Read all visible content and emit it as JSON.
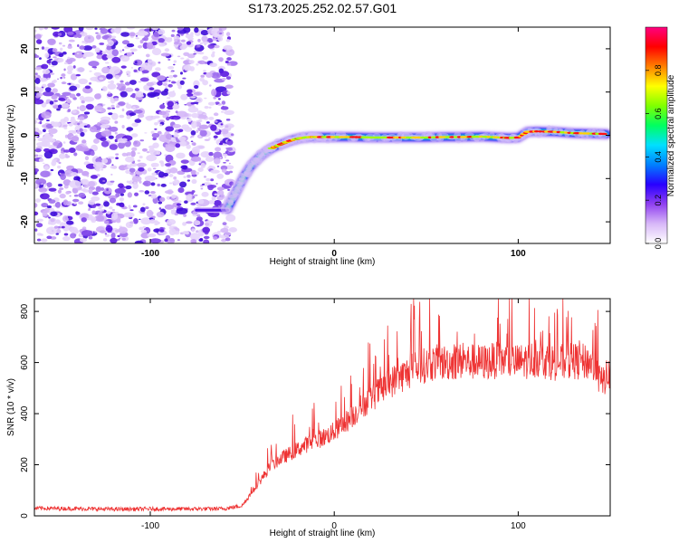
{
  "title": "S173.2025.252.02.57.G01",
  "chart_data": [
    {
      "type": "heatmap",
      "title": "S173.2025.252.02.57.G01",
      "xlabel": "Height of straight line (km)",
      "ylabel": "Frequency (Hz)",
      "xlim": [
        -163,
        150
      ],
      "ylim": [
        -25,
        25
      ],
      "xticks": [
        -100,
        0,
        100
      ],
      "yticks": [
        -20,
        -10,
        0,
        10,
        20
      ],
      "grid": false,
      "colorbar": {
        "label": "Normalized spectral amplitude",
        "range": [
          0,
          1
        ],
        "ticks": [
          "0.0",
          "0.2",
          "0.4",
          "0.6",
          "0.8"
        ],
        "colors": [
          "#ffffff",
          "#d8b8f8",
          "#9040f0",
          "#2800ff",
          "#0080ff",
          "#00e0ff",
          "#00ff60",
          "#80ff00",
          "#ffff00",
          "#ff8000",
          "#ff0000",
          "#ff0080"
        ]
      },
      "noise_region": {
        "x_range": [
          -163,
          -55
        ],
        "y_range": [
          -25,
          25
        ]
      },
      "ridge": {
        "x": [
          -58,
          -55,
          -52,
          -49,
          -46,
          -43,
          -40,
          -37,
          -34,
          -31,
          -28,
          -25,
          -22,
          -19,
          -16,
          -13,
          -10,
          -5,
          0,
          10,
          20,
          30,
          40,
          50,
          60,
          70,
          80,
          90,
          95,
          100,
          105,
          110,
          120,
          130,
          140,
          148
        ],
        "freq": [
          -17,
          -14.5,
          -12,
          -9.5,
          -7.5,
          -6,
          -4.8,
          -3.8,
          -3,
          -2.4,
          -1.9,
          -1.4,
          -1,
          -0.7,
          -0.5,
          -0.4,
          -0.4,
          -0.4,
          -0.4,
          -0.4,
          -0.5,
          -0.5,
          -0.5,
          -0.5,
          -0.4,
          -0.4,
          -0.3,
          -0.5,
          -0.6,
          -0.5,
          0.8,
          0.9,
          0.8,
          0.5,
          0.4,
          0.3
        ]
      },
      "tail": {
        "x": [
          -75,
          -58
        ],
        "freq": [
          -17.3,
          -17.3
        ]
      }
    },
    {
      "type": "line",
      "xlabel": "Height of straight line (km)",
      "ylabel": "SNR (10 * v/v)",
      "xlim": [
        -163,
        150
      ],
      "ylim": [
        0,
        850
      ],
      "xticks": [
        -100,
        0,
        100
      ],
      "yticks": [
        0,
        200,
        400,
        600,
        800
      ],
      "grid": false,
      "color": "#ee3333",
      "series": [
        {
          "name": "SNR",
          "x": [
            -163,
            -140,
            -120,
            -100,
            -80,
            -60,
            -50,
            -45,
            -40,
            -35,
            -30,
            -25,
            -20,
            -15,
            -10,
            -5,
            0,
            5,
            10,
            15,
            20,
            25,
            30,
            35,
            40,
            45,
            50,
            55,
            60,
            70,
            80,
            90,
            100,
            110,
            120,
            130,
            140,
            145,
            150
          ],
          "y": [
            30,
            28,
            26,
            27,
            27,
            28,
            40,
            90,
            140,
            190,
            220,
            240,
            260,
            280,
            295,
            310,
            330,
            360,
            390,
            430,
            460,
            490,
            520,
            540,
            560,
            580,
            590,
            600,
            600,
            605,
            600,
            610,
            600,
            615,
            600,
            605,
            600,
            520,
            560
          ]
        }
      ]
    }
  ]
}
